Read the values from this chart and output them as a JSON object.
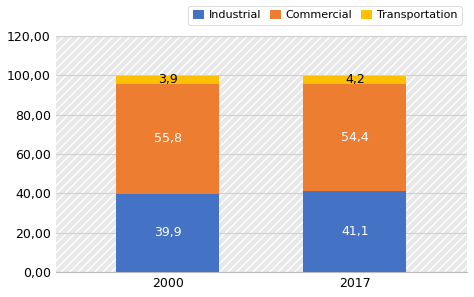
{
  "categories": [
    "2000",
    "2017"
  ],
  "industrial": [
    39.9,
    41.1
  ],
  "commercial": [
    55.8,
    54.4
  ],
  "transportation": [
    3.9,
    4.2
  ],
  "industrial_color": "#4472C4",
  "commercial_color": "#ED7D31",
  "transportation_color": "#FFC000",
  "ylim": [
    0,
    120
  ],
  "yticks": [
    0,
    20,
    40,
    60,
    80,
    100,
    120
  ],
  "ytick_labels": [
    "0,00",
    "20,00",
    "40,00",
    "60,00",
    "80,00",
    "100,00",
    "120,00"
  ],
  "legend_labels": [
    "Industrial",
    "Commercial",
    "Transportation"
  ],
  "bar_width": 0.55,
  "background_color": "#ffffff",
  "plot_bg_color": "#e8e8e8",
  "hatch_color": "#ffffff",
  "label_fontsize": 9,
  "legend_fontsize": 8,
  "tick_fontsize": 9,
  "grid_color": "#d0d0d0"
}
